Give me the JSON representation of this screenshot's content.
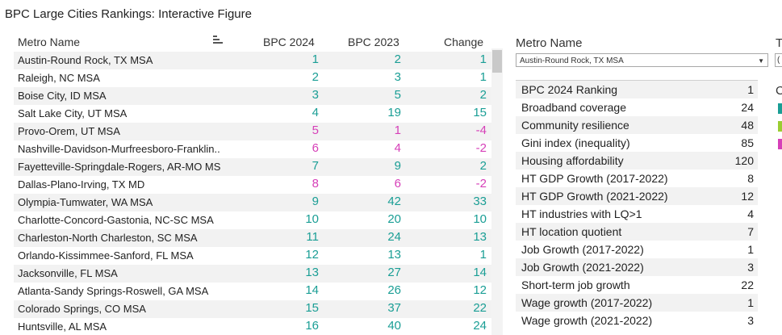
{
  "title": "BPC Large Cities Rankings: Interactive Figure",
  "colors": {
    "up": "#1a9e95",
    "down": "#d63fb8",
    "same": "#9acd32"
  },
  "table": {
    "headers": {
      "metro": "Metro Name",
      "y2024": "BPC 2024",
      "y2023": "BPC 2023",
      "change": "Change"
    },
    "rows": [
      {
        "metro": "Austin-Round Rock, TX MSA",
        "y2024": "1",
        "y2023": "2",
        "change": "1",
        "trend": "up"
      },
      {
        "metro": "Raleigh, NC MSA",
        "y2024": "2",
        "y2023": "3",
        "change": "1",
        "trend": "up"
      },
      {
        "metro": "Boise City, ID MSA",
        "y2024": "3",
        "y2023": "5",
        "change": "2",
        "trend": "up"
      },
      {
        "metro": "Salt Lake City, UT MSA",
        "y2024": "4",
        "y2023": "19",
        "change": "15",
        "trend": "up"
      },
      {
        "metro": "Provo-Orem, UT MSA",
        "y2024": "5",
        "y2023": "1",
        "change": "-4",
        "trend": "down"
      },
      {
        "metro": "Nashville-Davidson-Murfreesboro-Franklin..",
        "y2024": "6",
        "y2023": "4",
        "change": "-2",
        "trend": "down"
      },
      {
        "metro": "Fayetteville-Springdale-Rogers, AR-MO MS",
        "y2024": "7",
        "y2023": "9",
        "change": "2",
        "trend": "up"
      },
      {
        "metro": "Dallas-Plano-Irving, TX MD",
        "y2024": "8",
        "y2023": "6",
        "change": "-2",
        "trend": "down"
      },
      {
        "metro": "Olympia-Tumwater, WA MSA",
        "y2024": "9",
        "y2023": "42",
        "change": "33",
        "trend": "up"
      },
      {
        "metro": "Charlotte-Concord-Gastonia, NC-SC MSA",
        "y2024": "10",
        "y2023": "20",
        "change": "10",
        "trend": "up"
      },
      {
        "metro": "Charleston-North Charleston, SC MSA",
        "y2024": "11",
        "y2023": "24",
        "change": "13",
        "trend": "up"
      },
      {
        "metro": "Orlando-Kissimmee-Sanford, FL MSA",
        "y2024": "12",
        "y2023": "13",
        "change": "1",
        "trend": "up"
      },
      {
        "metro": "Jacksonville, FL MSA",
        "y2024": "13",
        "y2023": "27",
        "change": "14",
        "trend": "up"
      },
      {
        "metro": "Atlanta-Sandy Springs-Roswell, GA MSA",
        "y2024": "14",
        "y2023": "26",
        "change": "12",
        "trend": "up"
      },
      {
        "metro": "Colorado Springs, CO MSA",
        "y2024": "15",
        "y2023": "37",
        "change": "22",
        "trend": "up"
      },
      {
        "metro": "Huntsville, AL MSA",
        "y2024": "16",
        "y2023": "40",
        "change": "24",
        "trend": "up"
      }
    ]
  },
  "filter": {
    "label": "Metro Name",
    "selected": "Austin-Round Rock, TX MSA"
  },
  "detail": [
    {
      "label": "BPC 2024 Ranking",
      "value": "1"
    },
    {
      "label": "Broadband coverage",
      "value": "24"
    },
    {
      "label": "Community resilience",
      "value": "48"
    },
    {
      "label": "Gini index (inequality)",
      "value": "85"
    },
    {
      "label": "Housing affordability",
      "value": "120"
    },
    {
      "label": "HT GDP Growth (2017-2022)",
      "value": "8"
    },
    {
      "label": "HT GDP Growth (2021-2022)",
      "value": "12"
    },
    {
      "label": "HT industries with LQ>1",
      "value": "4"
    },
    {
      "label": "HT location quotient",
      "value": "7"
    },
    {
      "label": "Job Growth (2017-2022)",
      "value": "1"
    },
    {
      "label": "Job Growth (2021-2022)",
      "value": "3"
    },
    {
      "label": "Short-term job growth",
      "value": "22"
    },
    {
      "label": "Wage growth (2017-2022)",
      "value": "1"
    },
    {
      "label": "Wage growth (2021-2022)",
      "value": "3"
    }
  ],
  "cut_off": {
    "second_filter_label": "T",
    "second_filter_value": "(",
    "legend_label": "C"
  }
}
